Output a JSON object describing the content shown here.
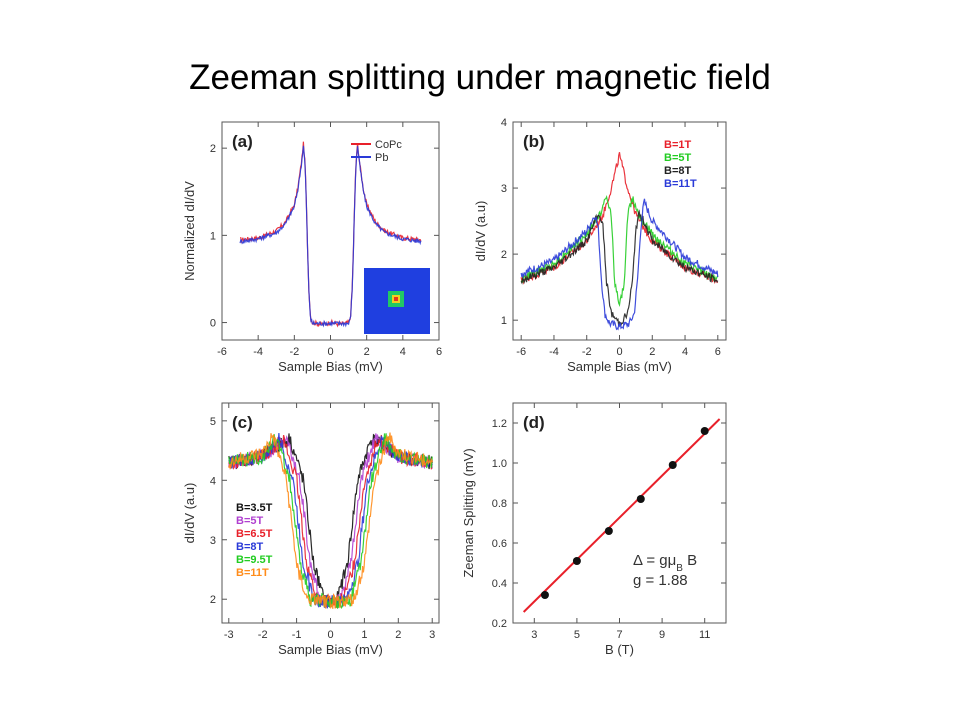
{
  "slide": {
    "title": "Zeeman splitting under magnetic field"
  },
  "chart_data": [
    {
      "panel": "(a)",
      "type": "line",
      "xlabel": "Sample Bias (mV)",
      "ylabel": "Normalized dI/dV",
      "xlim": [
        -6,
        6
      ],
      "ylim": [
        -0.2,
        2.3
      ],
      "xticks": [
        -6,
        -4,
        -2,
        0,
        2,
        4,
        6
      ],
      "yticks": [
        0,
        1,
        2
      ],
      "legend": "top-right",
      "inset": "STM topograph (blue background, molecule in center)",
      "series": [
        {
          "name": "CoPc",
          "color": "#e8202a",
          "x": [
            -5,
            -4,
            -3,
            -2.5,
            -2,
            -1.8,
            -1.6,
            -1.5,
            -1.4,
            -1.3,
            -1.2,
            -1.1,
            -1,
            -0.5,
            0,
            0.5,
            1,
            1.1,
            1.2,
            1.3,
            1.4,
            1.5,
            1.6,
            1.8,
            2,
            2.5,
            3,
            4,
            5
          ],
          "y": [
            0.95,
            0.97,
            1.05,
            1.15,
            1.35,
            1.55,
            1.85,
            2.05,
            1.8,
            1.1,
            0.4,
            0.05,
            0,
            -0.02,
            0,
            -0.02,
            0,
            0.05,
            0.4,
            1.1,
            1.8,
            2.05,
            1.85,
            1.55,
            1.35,
            1.15,
            1.05,
            0.97,
            0.95
          ]
        },
        {
          "name": "Pb",
          "color": "#2a3ad8",
          "x": [
            -5,
            -4,
            -3,
            -2.5,
            -2,
            -1.8,
            -1.6,
            -1.5,
            -1.4,
            -1.3,
            -1.2,
            -1.1,
            -1,
            -0.5,
            0,
            0.5,
            1,
            1.1,
            1.2,
            1.3,
            1.4,
            1.5,
            1.6,
            1.8,
            2,
            2.5,
            3,
            4,
            5
          ],
          "y": [
            0.93,
            0.96,
            1.03,
            1.13,
            1.33,
            1.53,
            1.83,
            2.03,
            1.78,
            1.08,
            0.38,
            0.04,
            -0.01,
            -0.01,
            -0.01,
            -0.01,
            -0.01,
            0.04,
            0.38,
            1.08,
            1.78,
            2.03,
            1.83,
            1.53,
            1.33,
            1.13,
            1.03,
            0.96,
            0.93
          ]
        }
      ]
    },
    {
      "panel": "(b)",
      "type": "line",
      "xlabel": "Sample Bias (mV)",
      "ylabel": "dI/dV (a.u)",
      "xlim": [
        -6.5,
        6.5
      ],
      "ylim": [
        0.7,
        4
      ],
      "xticks": [
        -6,
        -4,
        -2,
        0,
        2,
        4,
        6
      ],
      "yticks": [
        1,
        2,
        3,
        4
      ],
      "legend": "top-right",
      "series": [
        {
          "name": "B=1T",
          "color": "#e8202a",
          "x": [
            -6,
            -4,
            -2,
            -1,
            -0.5,
            0,
            0.5,
            1,
            2,
            4,
            6
          ],
          "y": [
            1.6,
            1.8,
            2.2,
            2.6,
            3.0,
            3.5,
            3.0,
            2.6,
            2.2,
            1.8,
            1.6
          ]
        },
        {
          "name": "B=5T",
          "color": "#22cc22",
          "x": [
            -6,
            -4,
            -2,
            -1.2,
            -0.8,
            -0.5,
            -0.3,
            0,
            0.3,
            0.5,
            0.8,
            1.2,
            2,
            4,
            6
          ],
          "y": [
            1.62,
            1.85,
            2.3,
            2.6,
            2.85,
            2.6,
            1.6,
            1.2,
            1.6,
            2.6,
            2.85,
            2.6,
            2.3,
            1.85,
            1.62
          ]
        },
        {
          "name": "B=8T",
          "color": "#222222",
          "x": [
            -6,
            -4,
            -2,
            -1.5,
            -1.2,
            -1,
            -0.8,
            -0.5,
            0,
            0.5,
            0.8,
            1,
            1.2,
            1.5,
            2,
            4,
            6
          ],
          "y": [
            1.6,
            1.8,
            2.2,
            2.5,
            2.6,
            2.4,
            1.6,
            1.1,
            0.95,
            1.1,
            1.6,
            2.4,
            2.6,
            2.5,
            2.2,
            1.8,
            1.6
          ]
        },
        {
          "name": "B=11T",
          "color": "#2a3ad8",
          "x": [
            -6,
            -4,
            -2,
            -1.5,
            -1.3,
            -1.1,
            -0.9,
            -0.6,
            0,
            0.6,
            0.9,
            1.1,
            1.3,
            1.5,
            2,
            4,
            6
          ],
          "y": [
            1.7,
            1.9,
            2.35,
            2.6,
            2.4,
            1.6,
            1.1,
            0.95,
            0.9,
            0.95,
            1.1,
            1.6,
            2.4,
            2.8,
            2.5,
            1.95,
            1.7
          ]
        }
      ]
    },
    {
      "panel": "(c)",
      "type": "line",
      "xlabel": "Sample Bias (mV)",
      "ylabel": "dI/dV (a.u)",
      "xlim": [
        -3.2,
        3.2
      ],
      "ylim": [
        1.6,
        5.3
      ],
      "xticks": [
        -3,
        -2,
        -1,
        0,
        1,
        2,
        3
      ],
      "yticks": [
        2,
        3,
        4,
        5
      ],
      "legend": "bottom-left",
      "series": [
        {
          "name": "B=3.5T",
          "color": "#111111",
          "x": [
            -3,
            -2,
            -1.2,
            -0.8,
            -0.5,
            -0.2,
            0,
            0.2,
            0.5,
            0.8,
            1.2,
            2,
            3
          ],
          "y": [
            4.3,
            4.4,
            4.7,
            4.0,
            2.6,
            2.0,
            1.95,
            2.0,
            2.6,
            4.0,
            4.7,
            4.4,
            4.3
          ]
        },
        {
          "name": "B=5T",
          "color": "#b040d0",
          "x": [
            -3,
            -2,
            -1.3,
            -0.9,
            -0.6,
            -0.3,
            0,
            0.3,
            0.6,
            0.9,
            1.3,
            2,
            3
          ],
          "y": [
            4.3,
            4.4,
            4.7,
            4.0,
            2.6,
            2.0,
            1.95,
            2.0,
            2.6,
            4.0,
            4.7,
            4.4,
            4.3
          ]
        },
        {
          "name": "B=6.5T",
          "color": "#e8202a",
          "x": [
            -3,
            -2,
            -1.4,
            -1.0,
            -0.7,
            -0.4,
            0,
            0.4,
            0.7,
            1.0,
            1.4,
            2,
            3
          ],
          "y": [
            4.3,
            4.4,
            4.7,
            4.0,
            2.6,
            2.0,
            1.95,
            2.0,
            2.6,
            4.0,
            4.7,
            4.4,
            4.3
          ]
        },
        {
          "name": "B=8T",
          "color": "#2a3ad8",
          "x": [
            -3,
            -2,
            -1.5,
            -1.1,
            -0.8,
            -0.5,
            0,
            0.5,
            0.8,
            1.1,
            1.5,
            2,
            3
          ],
          "y": [
            4.3,
            4.4,
            4.7,
            4.0,
            2.6,
            2.0,
            1.95,
            2.0,
            2.6,
            4.0,
            4.7,
            4.4,
            4.3
          ]
        },
        {
          "name": "B=9.5T",
          "color": "#22cc22",
          "x": [
            -3,
            -2,
            -1.6,
            -1.2,
            -0.9,
            -0.6,
            0,
            0.6,
            0.9,
            1.2,
            1.6,
            2,
            3
          ],
          "y": [
            4.3,
            4.4,
            4.7,
            4.0,
            2.6,
            2.0,
            1.95,
            2.0,
            2.6,
            4.0,
            4.7,
            4.4,
            4.3
          ]
        },
        {
          "name": "B=11T",
          "color": "#ff8c1a",
          "x": [
            -3,
            -2,
            -1.7,
            -1.3,
            -1.0,
            -0.7,
            0,
            0.7,
            1.0,
            1.3,
            1.7,
            2,
            3
          ],
          "y": [
            4.3,
            4.45,
            4.75,
            4.0,
            2.6,
            2.0,
            1.95,
            2.0,
            2.6,
            4.0,
            4.75,
            4.45,
            4.3
          ]
        }
      ]
    },
    {
      "panel": "(d)",
      "type": "scatter",
      "xlabel": "B (T)",
      "ylabel": "Zeeman Splitting (mV)",
      "xlim": [
        2,
        12
      ],
      "ylim": [
        0.2,
        1.3
      ],
      "xticks": [
        3,
        5,
        7,
        9,
        11
      ],
      "yticks": [
        0.2,
        0.4,
        0.6,
        0.8,
        1.0,
        1.2
      ],
      "points": {
        "x": [
          3.5,
          5,
          6.5,
          8,
          9.5,
          11
        ],
        "y": [
          0.34,
          0.51,
          0.66,
          0.82,
          0.99,
          1.16
        ]
      },
      "fit": {
        "color": "#e8202a",
        "x": [
          2.5,
          11.7
        ],
        "y": [
          0.255,
          1.22
        ]
      },
      "annotation": [
        "Δ = gμ_B B",
        "g = 1.88"
      ]
    }
  ]
}
